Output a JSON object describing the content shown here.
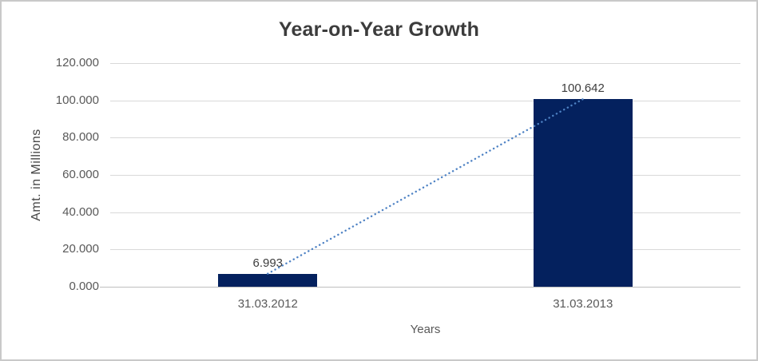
{
  "chart_data": {
    "type": "bar",
    "title": "Year-on-Year Growth",
    "xlabel": "Years",
    "ylabel": "Amt. in Millions",
    "categories": [
      "31.03.2012",
      "31.03.2013"
    ],
    "series": [
      {
        "name": "Amt. in Millions",
        "values": [
          6.993,
          100.642
        ]
      }
    ],
    "data_labels": [
      "6.993",
      "100.642"
    ],
    "ylim": [
      0,
      120
    ],
    "ytick_values": [
      0,
      20,
      40,
      60,
      80,
      100,
      120
    ],
    "ytick_labels": [
      "0.000",
      "20.000",
      "40.000",
      "60.000",
      "80.000",
      "100.000",
      "120.000"
    ],
    "grid": "horizontal",
    "legend": "none",
    "trendline": {
      "show": true,
      "style": "dotted",
      "color": "#4E82C4"
    },
    "colors": {
      "bar": "#04215E",
      "gridline": "#D9D9D9",
      "axis_line": "#BFBFBF",
      "title_text": "#3C3C3C",
      "tick_text": "#595959",
      "label_text": "#3D3D3D",
      "frame_border": "#C9C9C9"
    }
  }
}
